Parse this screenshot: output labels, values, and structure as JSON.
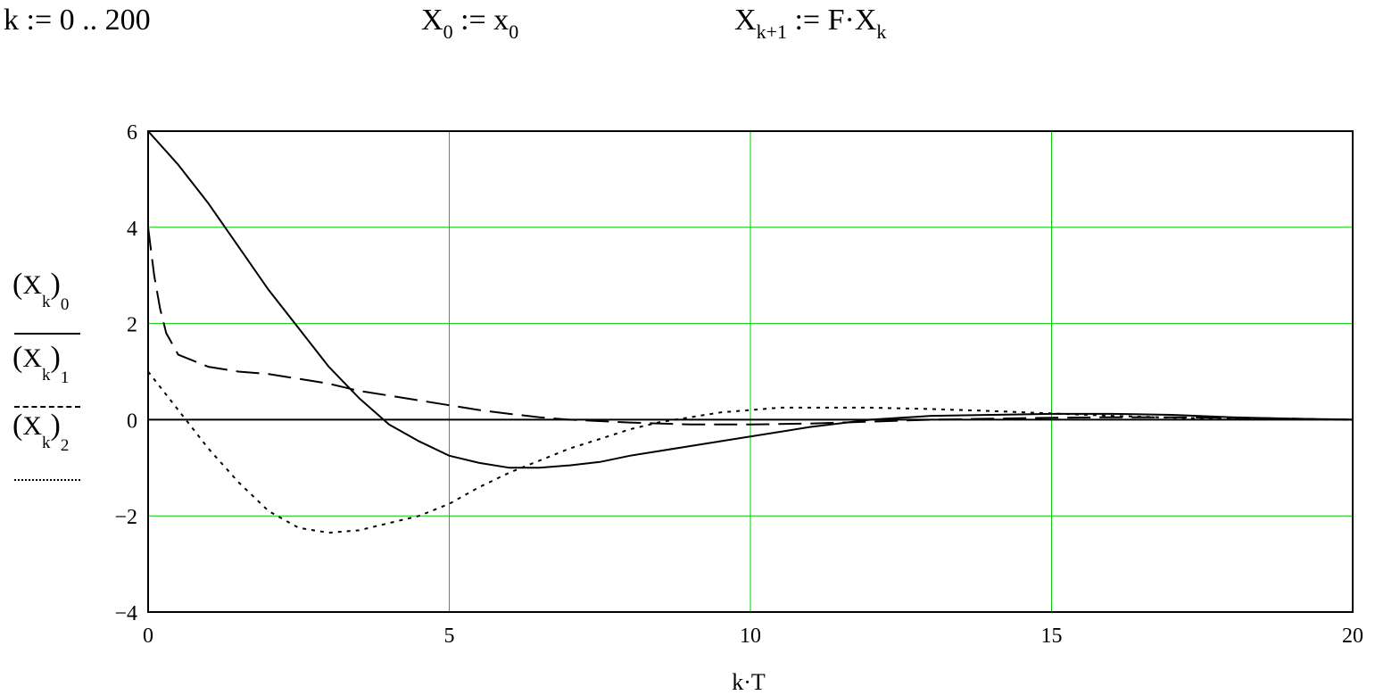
{
  "header": {
    "eq1": {
      "text": "k := 0 .. 200"
    },
    "eq2": {
      "base": "X",
      "base_sub": "0",
      "assign": " := x",
      "rhs_sub": "0"
    },
    "eq3": {
      "base": "X",
      "base_sub": "k+1",
      "assign": " := F·X",
      "rhs_sub": "k"
    }
  },
  "legend": [
    {
      "open": "(",
      "base": "X",
      "sub": "k",
      "close": ")",
      "index": "0",
      "style": "solid"
    },
    {
      "open": "(",
      "base": "X",
      "sub": "k",
      "close": ")",
      "index": "1",
      "style": "dashed"
    },
    {
      "open": "(",
      "base": "X",
      "sub": "k",
      "close": ")",
      "index": "2",
      "style": "dotted"
    }
  ],
  "colors": {
    "grid": "#00cc00",
    "series": "#000000",
    "axis": "#000000"
  },
  "chart_data": {
    "type": "line",
    "xlabel": "k·T",
    "ylabel": "",
    "xlim": [
      0,
      20
    ],
    "ylim": [
      -4,
      6
    ],
    "xticks": [
      0,
      5,
      10,
      15,
      20
    ],
    "yticks": [
      -4,
      -2,
      0,
      2,
      4,
      6
    ],
    "grid": true,
    "series": [
      {
        "name": "(X_k)_0",
        "style": "solid",
        "x": [
          0,
          0.5,
          1,
          1.5,
          2,
          2.5,
          3,
          3.5,
          4,
          4.5,
          5,
          5.5,
          6,
          6.5,
          7,
          7.5,
          8,
          9,
          10,
          11,
          12,
          13,
          14,
          15,
          16,
          17,
          18,
          19,
          20
        ],
        "y": [
          6,
          5.3,
          4.5,
          3.6,
          2.7,
          1.9,
          1.1,
          0.45,
          -0.1,
          -0.45,
          -0.75,
          -0.9,
          -1.0,
          -1.0,
          -0.95,
          -0.88,
          -0.75,
          -0.55,
          -0.35,
          -0.15,
          0.0,
          0.08,
          0.1,
          0.12,
          0.12,
          0.1,
          0.05,
          0.02,
          0.0
        ]
      },
      {
        "name": "(X_k)_1",
        "style": "dashed",
        "x": [
          0,
          0.1,
          0.2,
          0.3,
          0.5,
          1,
          1.5,
          2,
          2.5,
          3,
          3.5,
          4,
          4.5,
          5,
          5.5,
          6,
          6.5,
          7,
          8,
          9,
          10,
          11,
          12,
          13,
          14,
          15,
          16,
          17,
          18,
          19,
          20
        ],
        "y": [
          4,
          3.0,
          2.3,
          1.8,
          1.35,
          1.1,
          1.0,
          0.95,
          0.85,
          0.75,
          0.6,
          0.5,
          0.4,
          0.3,
          0.2,
          0.12,
          0.05,
          0.0,
          -0.06,
          -0.1,
          -0.1,
          -0.08,
          -0.04,
          0.0,
          0.02,
          0.04,
          0.05,
          0.05,
          0.04,
          0.02,
          0.0
        ]
      },
      {
        "name": "(X_k)_2",
        "style": "dotted",
        "x": [
          0,
          0.5,
          1,
          1.5,
          2,
          2.5,
          3,
          3.5,
          4,
          4.5,
          5,
          5.5,
          6,
          6.5,
          7,
          7.5,
          8,
          8.5,
          9,
          9.5,
          10,
          10.5,
          11,
          12,
          13,
          14,
          15,
          16,
          17,
          18,
          19,
          20
        ],
        "y": [
          1.0,
          0.2,
          -0.6,
          -1.3,
          -1.9,
          -2.25,
          -2.35,
          -2.3,
          -2.15,
          -2.0,
          -1.75,
          -1.4,
          -1.1,
          -0.85,
          -0.6,
          -0.4,
          -0.2,
          -0.05,
          0.05,
          0.15,
          0.2,
          0.25,
          0.25,
          0.25,
          0.22,
          0.18,
          0.13,
          0.08,
          0.04,
          0.02,
          0.01,
          0.0
        ]
      }
    ]
  }
}
